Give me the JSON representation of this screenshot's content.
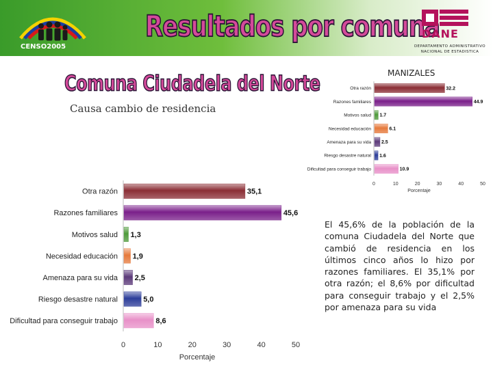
{
  "header": {
    "title": "Resultados por comuna",
    "census_logo_text": "CENSO2005",
    "dane_logo_text": "DANE",
    "dane_subtitle_line1": "DEPARTAMENTO ADMINISTRATIVO",
    "dane_subtitle_line2": "NACIONAL DE ESTADISTICA"
  },
  "comuna_title": "Comuna Ciudadela del Norte",
  "subtitle": "Causa cambio de residencia",
  "city_label": "MANIZALES",
  "description": "El 45,6% de la población de la comuna Ciudadela del Norte que cambió de residencia en los últimos cinco años lo hizo por razones familiares. El 35,1% por otra razón; el 8,6% por dificultad para conseguir trabajo y el 2,5% por amenaza para su vida",
  "chart_data": [
    {
      "type": "bar",
      "orientation": "horizontal",
      "categories": [
        "Otra razón",
        "Razones familiares",
        "Motivos salud",
        "Necesidad educación",
        "Amenaza para su vida",
        "Riesgo desastre natural",
        "Dificultad para conseguir trabajo"
      ],
      "values": [
        35.1,
        45.6,
        1.3,
        1.9,
        2.5,
        5.0,
        8.6
      ],
      "value_labels": [
        "35,1",
        "45,6",
        "1,3",
        "1,9",
        "2,5",
        "5,0",
        "8,6"
      ],
      "colors": [
        "#8b2e35",
        "#7a1f8a",
        "#4e9a3a",
        "#e67a3c",
        "#5c3a7a",
        "#2d3e9a",
        "#e890c8"
      ],
      "xlabel": "Porcentaje",
      "xlim": [
        0,
        50
      ],
      "xticks": [
        "0",
        "10",
        "20",
        "30",
        "40",
        "50"
      ],
      "grid": false
    },
    {
      "type": "bar",
      "orientation": "horizontal",
      "title": "MANIZALES",
      "categories": [
        "Otra razón",
        "Razones familiares",
        "Motivos salud",
        "Necesidad educación",
        "Amenaza para su vida",
        "Riesgo desastre natural",
        "Dificultad para conseguir trabajo"
      ],
      "values": [
        32.2,
        44.9,
        1.7,
        6.1,
        2.5,
        1.6,
        10.9
      ],
      "value_labels": [
        "32.2",
        "44.9",
        "1.7",
        "6.1",
        "2.5",
        "1.6",
        "10.9"
      ],
      "colors": [
        "#8b2e35",
        "#7a1f8a",
        "#4e9a3a",
        "#e67a3c",
        "#5c3a7a",
        "#2d3e9a",
        "#e890c8"
      ],
      "xlabel": "Porcentaje",
      "xlim": [
        0,
        50
      ],
      "xticks": [
        "0",
        "10",
        "20",
        "30",
        "40",
        "50"
      ],
      "grid": false
    }
  ]
}
